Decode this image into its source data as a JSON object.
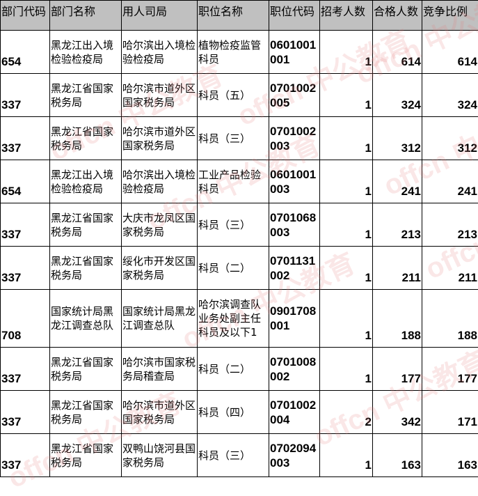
{
  "headers": [
    "部门代码",
    "部门名称",
    "用人司局",
    "职位名称",
    "职位代码",
    "招考人数",
    "合格人数",
    "竞争比例"
  ],
  "rows": [
    {
      "dept_code": "654",
      "dept_name": "黑龙江出入境检验检疫局",
      "bureau": "哈尔滨出入境检验检疫局",
      "position": "植物检疫监管科员",
      "pos_code": "0601001001",
      "recruit": "1",
      "qualified": "614",
      "ratio": "614"
    },
    {
      "dept_code": "337",
      "dept_name": "黑龙江省国家税务局",
      "bureau": "哈尔滨市道外区国家税务局",
      "position": "科员（五）",
      "pos_code": "0701002005",
      "recruit": "1",
      "qualified": "324",
      "ratio": "324"
    },
    {
      "dept_code": "337",
      "dept_name": "黑龙江省国家税务局",
      "bureau": "哈尔滨市道外区国家税务局",
      "position": "科员（三）",
      "pos_code": "0701002003",
      "recruit": "1",
      "qualified": "312",
      "ratio": "312"
    },
    {
      "dept_code": "654",
      "dept_name": "黑龙江出入境检验检疫局",
      "bureau": "哈尔滨出入境检验检疫局",
      "position": "工业产品检验科员",
      "pos_code": "0601001003",
      "recruit": "1",
      "qualified": "241",
      "ratio": "241"
    },
    {
      "dept_code": "337",
      "dept_name": "黑龙江省国家税务局",
      "bureau": "大庆市龙凤区国家税务局",
      "position": "科员（三）",
      "pos_code": "0701068003",
      "recruit": "1",
      "qualified": "213",
      "ratio": "213"
    },
    {
      "dept_code": "337",
      "dept_name": "黑龙江省国家税务局",
      "bureau": "绥化市开发区国家税务局",
      "position": "科员（二）",
      "pos_code": "0701131002",
      "recruit": "1",
      "qualified": "211",
      "ratio": "211"
    },
    {
      "dept_code": "708",
      "dept_name": "国家统计局黑龙江调查总队",
      "bureau": "国家统计局黑龙江调查总队",
      "position": "哈尔滨调查队业务处副主任科员及以下1",
      "pos_code": "0901708001",
      "recruit": "1",
      "qualified": "188",
      "ratio": "188"
    },
    {
      "dept_code": "337",
      "dept_name": "黑龙江省国家税务局",
      "bureau": "哈尔滨市国家税务局稽查局",
      "position": "科员（二）",
      "pos_code": "0701008002",
      "recruit": "1",
      "qualified": "177",
      "ratio": "177"
    },
    {
      "dept_code": "337",
      "dept_name": "黑龙江省国家税务局",
      "bureau": "哈尔滨市道外区国家税务局",
      "position": "科员（四）",
      "pos_code": "0701002004",
      "recruit": "2",
      "qualified": "342",
      "ratio": "171"
    },
    {
      "dept_code": "337",
      "dept_name": "黑龙江省国家税务局",
      "bureau": "双鸭山饶河县国家税务局",
      "position": "科员（三）",
      "pos_code": "0702094003",
      "recruit": "1",
      "qualified": "163",
      "ratio": "163"
    }
  ],
  "watermark": "offcn 中公教育"
}
